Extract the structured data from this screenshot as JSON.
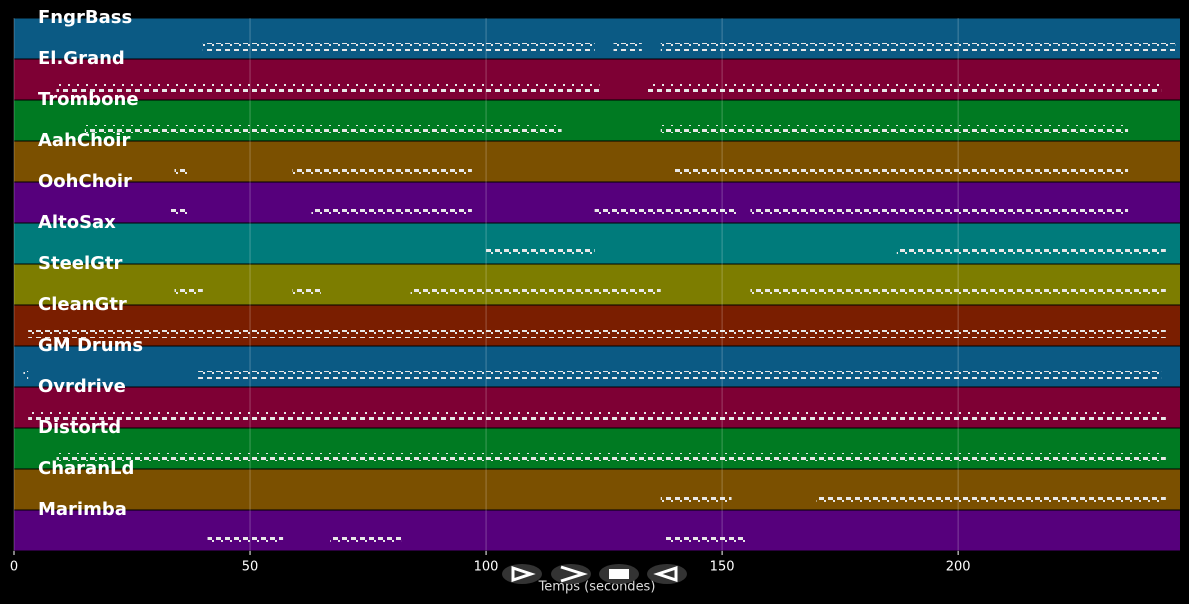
{
  "chart_data": {
    "type": "piano-roll",
    "x_label": "Temps (secondes)",
    "xlim": [
      0,
      247
    ],
    "xticks": [
      0,
      50,
      100,
      150,
      200
    ],
    "grid": true,
    "series": [
      {
        "name": "FngrBass",
        "color": "#0b5a84",
        "segments": [
          [
            40,
            123
          ],
          [
            127,
            133
          ],
          [
            137,
            246
          ]
        ]
      },
      {
        "name": "El.Grand",
        "color": "#7e0034",
        "segments": [
          [
            9,
            124
          ],
          [
            134,
            243
          ]
        ]
      },
      {
        "name": "Trombone",
        "color": "#007a22",
        "segments": [
          [
            15,
            116
          ],
          [
            137,
            236
          ]
        ]
      },
      {
        "name": "AahChoir",
        "color": "#7b5000",
        "segments": [
          [
            34,
            37
          ],
          [
            59,
            97
          ],
          [
            140,
            236
          ]
        ]
      },
      {
        "name": "OohChoir",
        "color": "#56007c",
        "segments": [
          [
            33,
            37
          ],
          [
            63,
            97
          ],
          [
            123,
            153
          ],
          [
            156,
            236
          ]
        ]
      },
      {
        "name": "AltoSax",
        "color": "#007b7b",
        "segments": [
          [
            100,
            123
          ],
          [
            187,
            244
          ]
        ]
      },
      {
        "name": "SteelGtr",
        "color": "#7d7d00",
        "segments": [
          [
            34,
            40
          ],
          [
            59,
            65
          ],
          [
            84,
            137
          ],
          [
            156,
            244
          ]
        ]
      },
      {
        "name": "CleanGtr",
        "color": "#7a1e00",
        "segments": [
          [
            3,
            244
          ]
        ]
      },
      {
        "name": "GM Drums",
        "color": "#0b5a84",
        "segments": [
          [
            2,
            3
          ],
          [
            39,
            243
          ]
        ]
      },
      {
        "name": "Ovrdrive",
        "color": "#7e0034",
        "segments": [
          [
            3,
            244
          ]
        ]
      },
      {
        "name": "Distortd",
        "color": "#007a22",
        "segments": [
          [
            9,
            244
          ]
        ]
      },
      {
        "name": "CharanLd",
        "color": "#7b5000",
        "segments": [
          [
            137,
            152
          ],
          [
            170,
            244
          ]
        ]
      },
      {
        "name": "Marimba",
        "color": "#56007c",
        "segments": [
          [
            41,
            57
          ],
          [
            67,
            82
          ],
          [
            138,
            155
          ]
        ]
      }
    ]
  }
}
